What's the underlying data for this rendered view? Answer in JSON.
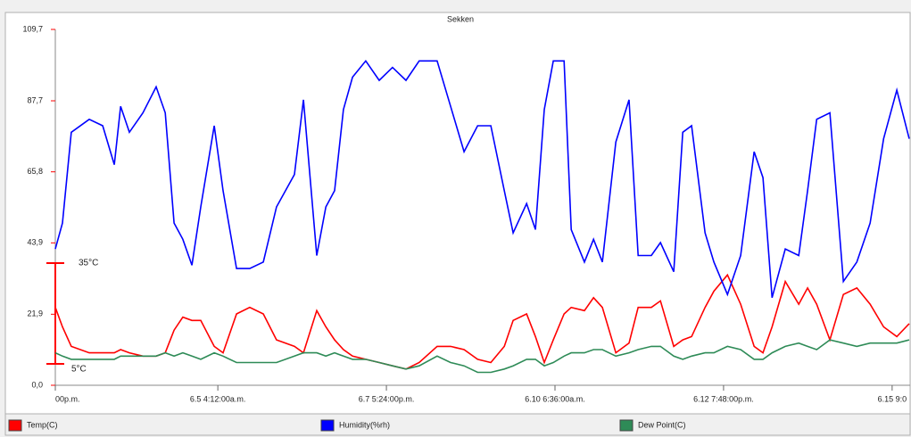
{
  "chart_data": {
    "type": "line",
    "title": "Sekken",
    "annotations": [
      "35°C",
      "5°C"
    ],
    "x": [
      0,
      2.6,
      5.8,
      12.3,
      17.2,
      21.4,
      23.7,
      26.9,
      31.8,
      36.6,
      39.9,
      43.1,
      46.3,
      49.6,
      52.8,
      57.7,
      60.9,
      65.8,
      70.6,
      75.5,
      80.3,
      86.8,
      90.1,
      94.9,
      98.2,
      101.4,
      104.6,
      107.9,
      112.7,
      117.6,
      122.4,
      127.3,
      132.1,
      138.6,
      143.5,
      148.4,
      153.3,
      158.1,
      163,
      166.2,
      171.1,
      174.3,
      177.5,
      180.8,
      184.7,
      187.3,
      192.1,
      195.4,
      198.6,
      203.5,
      208.3,
      211.6,
      216.4,
      219.7,
      224.5,
      227.8,
      231,
      235.9,
      239.1,
      244,
      248.8,
      253.7,
      256.9,
      260.2,
      265,
      269.9,
      273.1,
      276.4,
      281.2,
      286.1,
      291,
      295.8,
      300.7,
      305.5,
      310
    ],
    "series": [
      {
        "name": "Temp(C)",
        "color": "#ff0000",
        "values": [
          24,
          18,
          12,
          10,
          10,
          10,
          11,
          10,
          9,
          9,
          10,
          17,
          21,
          20,
          20,
          12,
          10,
          22,
          24,
          22,
          14,
          12,
          10,
          23,
          18,
          14,
          11,
          9,
          8,
          7,
          6,
          5,
          7,
          12,
          12,
          11,
          8,
          7,
          12,
          20,
          22,
          15,
          7,
          14,
          22,
          24,
          23,
          27,
          24,
          10,
          13,
          24,
          24,
          26,
          12,
          14,
          15,
          24,
          29,
          34,
          25,
          12,
          10,
          18,
          32,
          25,
          30,
          25,
          14,
          28,
          30,
          25,
          18,
          15,
          19
        ]
      },
      {
        "name": "Humidity(%rh)",
        "color": "#0000ff",
        "values": [
          42,
          50,
          78,
          82,
          80,
          68,
          86,
          78,
          84,
          92,
          84,
          50,
          45,
          37,
          55,
          80,
          60,
          36,
          36,
          38,
          55,
          65,
          88,
          40,
          55,
          60,
          85,
          95,
          100,
          94,
          98,
          94,
          100,
          100,
          86,
          72,
          80,
          80,
          60,
          47,
          56,
          48,
          85,
          100,
          100,
          48,
          38,
          45,
          38,
          75,
          88,
          40,
          40,
          44,
          35,
          78,
          80,
          47,
          38,
          28,
          40,
          72,
          64,
          27,
          42,
          40,
          60,
          82,
          84,
          32,
          38,
          50,
          76,
          91,
          76
        ]
      },
      {
        "name": "Dew Point(C)",
        "color": "#2e8b57",
        "values": [
          10,
          9,
          8,
          8,
          8,
          8,
          9,
          9,
          9,
          9,
          10,
          9,
          10,
          9,
          8,
          10,
          9,
          7,
          7,
          7,
          7,
          9,
          10,
          10,
          9,
          10,
          9,
          8,
          8,
          7,
          6,
          5,
          6,
          9,
          7,
          6,
          4,
          4,
          5,
          6,
          8,
          8,
          6,
          7,
          9,
          10,
          10,
          11,
          11,
          9,
          10,
          11,
          12,
          12,
          9,
          8,
          9,
          10,
          10,
          12,
          11,
          8,
          8,
          10,
          12,
          13,
          12,
          11,
          14,
          13,
          12,
          13,
          13,
          13,
          14
        ]
      }
    ],
    "xlim": [
      0,
      310
    ],
    "xticks": [
      {
        "value": 0,
        "label": "00p.m."
      },
      {
        "value": 59,
        "label": "6.5 4:12:00a.m."
      },
      {
        "value": 120.2,
        "label": "6.7 5:24:00p.m."
      },
      {
        "value": 181.4,
        "label": "6.10 6:36:00a.m."
      },
      {
        "value": 242.6,
        "label": "6.12 7:48:00p.m."
      },
      {
        "value": 303.8,
        "label": "6.15 9:0"
      }
    ],
    "ylim": [
      0,
      109.7
    ],
    "yticks": [
      {
        "value": 0,
        "label": "0,0"
      },
      {
        "value": 21.9,
        "label": "21,9"
      },
      {
        "value": 43.9,
        "label": "43,9"
      },
      {
        "value": 65.8,
        "label": "65,8"
      },
      {
        "value": 87.7,
        "label": "87,7"
      },
      {
        "value": 109.7,
        "label": "109,7"
      }
    ]
  }
}
